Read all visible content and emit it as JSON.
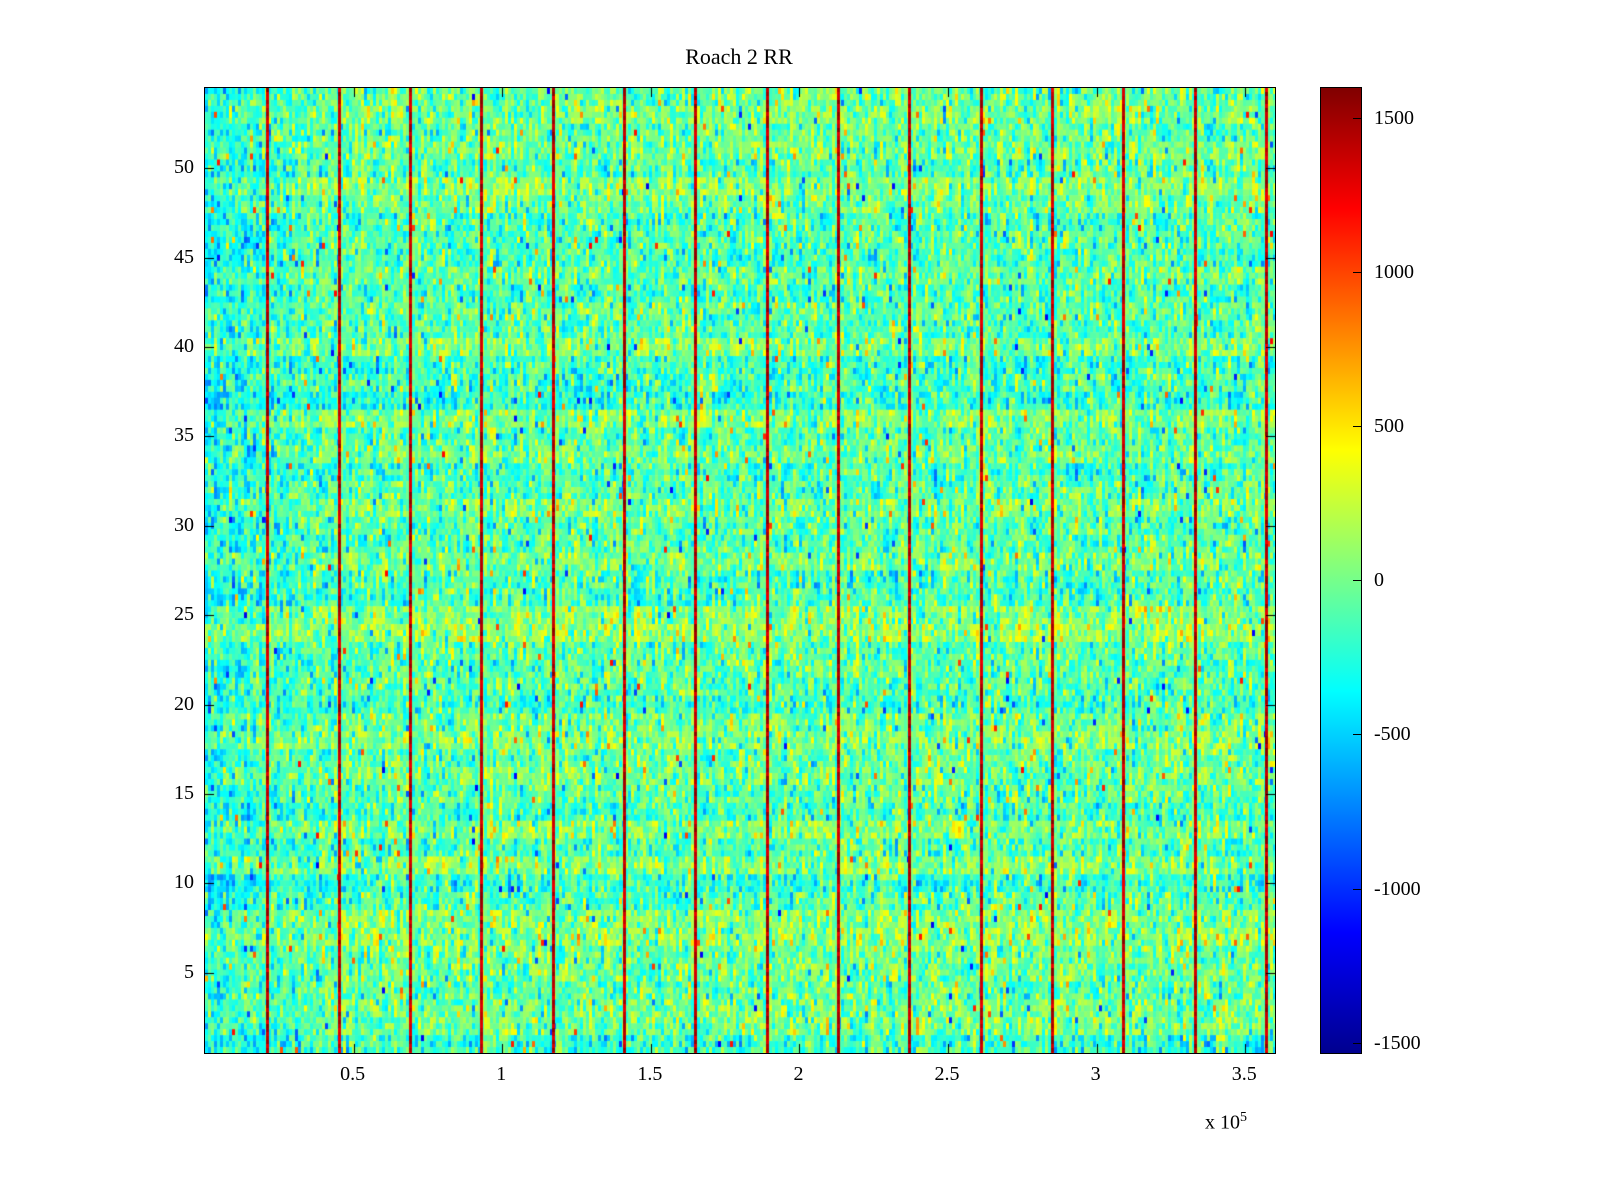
{
  "figure": {
    "background": "#ffffff"
  },
  "chart_data": {
    "type": "heatmap",
    "title": "Roach 2 RR",
    "colormap": "jet",
    "x_axis": {
      "range": [
        0,
        360000
      ],
      "tick_scale": 100000,
      "exponent_base": "x 10",
      "exponent": "5",
      "ticks": [
        {
          "value": 50000,
          "label": "0.5"
        },
        {
          "value": 100000,
          "label": "1"
        },
        {
          "value": 150000,
          "label": "1.5"
        },
        {
          "value": 200000,
          "label": "2"
        },
        {
          "value": 250000,
          "label": "2.5"
        },
        {
          "value": 300000,
          "label": "3"
        },
        {
          "value": 350000,
          "label": "3.5"
        }
      ]
    },
    "y_axis": {
      "range": [
        0.5,
        54.5
      ],
      "rows": 54,
      "ticks": [
        {
          "value": 5,
          "label": "5"
        },
        {
          "value": 10,
          "label": "10"
        },
        {
          "value": 15,
          "label": "15"
        },
        {
          "value": 20,
          "label": "20"
        },
        {
          "value": 25,
          "label": "25"
        },
        {
          "value": 30,
          "label": "30"
        },
        {
          "value": 35,
          "label": "35"
        },
        {
          "value": 40,
          "label": "40"
        },
        {
          "value": 45,
          "label": "45"
        },
        {
          "value": 50,
          "label": "50"
        }
      ]
    },
    "colorbar": {
      "vmin": -1530,
      "vmax": 1600,
      "ticks": [
        {
          "value": 1500,
          "label": "1500"
        },
        {
          "value": 1000,
          "label": "1000"
        },
        {
          "value": 500,
          "label": "500"
        },
        {
          "value": 0,
          "label": "0"
        },
        {
          "value": -500,
          "label": "-500"
        },
        {
          "value": -1000,
          "label": "-1000"
        },
        {
          "value": -1500,
          "label": "-1500"
        }
      ]
    },
    "noise_field": {
      "mean": -60,
      "row_mean_std": 70,
      "column_std": 140,
      "cell_std": 180,
      "left_edge_bias": -200,
      "spike_probability": 0.012,
      "spike_amplitude": [
        500,
        1200
      ]
    },
    "marker_lines": {
      "color": "#990000",
      "positions": [
        21000,
        45000,
        69000,
        93000,
        117000,
        141000,
        165000,
        189000,
        213000,
        237000,
        261000,
        285000,
        309000,
        333000,
        357000
      ]
    }
  }
}
